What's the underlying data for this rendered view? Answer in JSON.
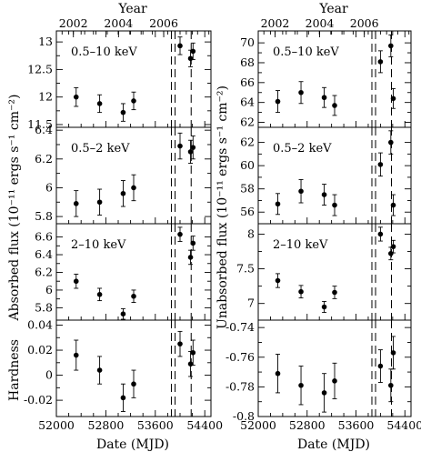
{
  "chart_data": {
    "type": "scatter",
    "shared_x": {
      "xlabel": "Date (MJD)",
      "xlim": [
        52000,
        54500
      ],
      "ticks": [
        52000,
        52800,
        53600,
        54400
      ],
      "tick_labels": [
        "52000",
        "52800",
        "53600",
        "54400"
      ],
      "top_axis": {
        "label": "Year",
        "ticks": [
          52275,
          53005,
          53736
        ],
        "tick_labels": [
          "2002",
          "2004",
          "2006"
        ]
      }
    },
    "vertical_lines": {
      "style": "dashed",
      "x": [
        53860,
        53920,
        54180
      ]
    },
    "row_ylabels": [
      "Absorbed flux (10⁻¹¹ ergs s⁻¹ cm⁻²)",
      "Hardness"
    ],
    "right_ylabel": "Unabsorbed flux (10⁻¹¹ ergs s⁻¹ cm⁻²)",
    "panels": [
      {
        "id": "abs-0.5-10",
        "column": 0,
        "row": 0,
        "label": "0.5–10 keV",
        "ylim": [
          11.45,
          13.2
        ],
        "ticks": [
          11.5,
          12,
          12.5,
          13
        ],
        "tick_labels": [
          "11.5",
          "12",
          "12.5",
          "13"
        ],
        "points": [
          {
            "x": 52320,
            "y": 12.0,
            "err": 0.17
          },
          {
            "x": 52700,
            "y": 11.88,
            "err": 0.16
          },
          {
            "x": 53080,
            "y": 11.72,
            "err": 0.16
          },
          {
            "x": 53250,
            "y": 11.93,
            "err": 0.16
          },
          {
            "x": 54000,
            "y": 12.93,
            "err": 0.16
          },
          {
            "x": 54170,
            "y": 12.7,
            "err": 0.15
          },
          {
            "x": 54210,
            "y": 12.83,
            "err": 0.15
          }
        ]
      },
      {
        "id": "abs-0.5-2",
        "column": 0,
        "row": 1,
        "label": "0.5–2 keV",
        "ylim": [
          5.75,
          6.42
        ],
        "ticks": [
          5.8,
          6.0,
          6.2,
          6.4
        ],
        "tick_labels": [
          "5.8",
          "6",
          "6.2",
          "6.4"
        ],
        "points": [
          {
            "x": 52320,
            "y": 5.89,
            "err": 0.09
          },
          {
            "x": 52700,
            "y": 5.9,
            "err": 0.09
          },
          {
            "x": 53080,
            "y": 5.96,
            "err": 0.09
          },
          {
            "x": 53250,
            "y": 6.0,
            "err": 0.09
          },
          {
            "x": 54000,
            "y": 6.29,
            "err": 0.09
          },
          {
            "x": 54170,
            "y": 6.25,
            "err": 0.08
          },
          {
            "x": 54210,
            "y": 6.28,
            "err": 0.08
          }
        ]
      },
      {
        "id": "abs-2-10",
        "column": 0,
        "row": 2,
        "label": "2–10 keV",
        "ylim": [
          5.66,
          6.75
        ],
        "ticks": [
          5.8,
          6.0,
          6.2,
          6.4,
          6.6
        ],
        "tick_labels": [
          "5.8",
          "6",
          "6.2",
          "6.4",
          "6.6"
        ],
        "points": [
          {
            "x": 52320,
            "y": 6.1,
            "err": 0.08
          },
          {
            "x": 52700,
            "y": 5.95,
            "err": 0.07
          },
          {
            "x": 53080,
            "y": 5.73,
            "err": 0.06
          },
          {
            "x": 53250,
            "y": 5.93,
            "err": 0.07
          },
          {
            "x": 54000,
            "y": 6.63,
            "err": 0.08
          },
          {
            "x": 54170,
            "y": 6.37,
            "err": 0.08
          },
          {
            "x": 54210,
            "y": 6.53,
            "err": 0.08
          }
        ]
      },
      {
        "id": "hardness-left",
        "column": 0,
        "row": 3,
        "label": "",
        "ylim": [
          -0.033,
          0.044
        ],
        "ticks": [
          -0.02,
          0.0,
          0.02,
          0.04
        ],
        "tick_labels": [
          "-0.02",
          "0",
          "0.02",
          "0.04"
        ],
        "points": [
          {
            "x": 52320,
            "y": 0.016,
            "err": 0.012
          },
          {
            "x": 52700,
            "y": 0.004,
            "err": 0.011
          },
          {
            "x": 53080,
            "y": -0.018,
            "err": 0.011
          },
          {
            "x": 53250,
            "y": -0.007,
            "err": 0.011
          },
          {
            "x": 54000,
            "y": 0.025,
            "err": 0.01
          },
          {
            "x": 54170,
            "y": 0.009,
            "err": 0.01
          },
          {
            "x": 54210,
            "y": 0.018,
            "err": 0.01
          }
        ]
      },
      {
        "id": "unabs-0.5-10",
        "column": 1,
        "row": 0,
        "label": "0.5–10 keV",
        "ylim": [
          61.5,
          71.2
        ],
        "ticks": [
          62,
          64,
          66,
          68,
          70
        ],
        "tick_labels": [
          "62",
          "64",
          "66",
          "68",
          "70"
        ],
        "points": [
          {
            "x": 52320,
            "y": 64.1,
            "err": 1.1
          },
          {
            "x": 52700,
            "y": 65.0,
            "err": 1.1
          },
          {
            "x": 53080,
            "y": 64.5,
            "err": 1.0
          },
          {
            "x": 53250,
            "y": 63.7,
            "err": 1.0
          },
          {
            "x": 54000,
            "y": 68.1,
            "err": 1.1
          },
          {
            "x": 54170,
            "y": 69.7,
            "err": 1.1
          },
          {
            "x": 54210,
            "y": 64.4,
            "err": 1.0
          }
        ]
      },
      {
        "id": "unabs-0.5-2",
        "column": 1,
        "row": 1,
        "label": "0.5–2 keV",
        "ylim": [
          55.0,
          63.3
        ],
        "ticks": [
          56,
          58,
          60,
          62
        ],
        "tick_labels": [
          "56",
          "58",
          "60",
          "62"
        ],
        "points": [
          {
            "x": 52320,
            "y": 56.7,
            "err": 0.9
          },
          {
            "x": 52700,
            "y": 57.8,
            "err": 1.0
          },
          {
            "x": 53080,
            "y": 57.5,
            "err": 0.9
          },
          {
            "x": 53250,
            "y": 56.6,
            "err": 0.9
          },
          {
            "x": 54000,
            "y": 60.1,
            "err": 1.0
          },
          {
            "x": 54170,
            "y": 62.0,
            "err": 1.0
          },
          {
            "x": 54210,
            "y": 56.6,
            "err": 0.9
          }
        ]
      },
      {
        "id": "unabs-2-10",
        "column": 1,
        "row": 2,
        "label": "2–10 keV",
        "ylim": [
          6.76,
          8.15
        ],
        "ticks": [
          7.0,
          7.5,
          8.0
        ],
        "tick_labels": [
          "7",
          "7.5",
          "8"
        ],
        "points": [
          {
            "x": 52320,
            "y": 7.33,
            "err": 0.1
          },
          {
            "x": 52700,
            "y": 7.17,
            "err": 0.09
          },
          {
            "x": 53080,
            "y": 6.95,
            "err": 0.08
          },
          {
            "x": 53250,
            "y": 7.16,
            "err": 0.09
          },
          {
            "x": 54000,
            "y": 8.0,
            "err": 0.1
          },
          {
            "x": 54170,
            "y": 7.72,
            "err": 0.09
          },
          {
            "x": 54210,
            "y": 7.82,
            "err": 0.09
          }
        ]
      },
      {
        "id": "hardness-right",
        "column": 1,
        "row": 3,
        "label": "",
        "ylim": [
          -0.8,
          -0.735
        ],
        "ticks": [
          -0.8,
          -0.78,
          -0.76,
          -0.74
        ],
        "tick_labels": [
          "-0.8",
          "-0.78",
          "-0.76",
          "-0.74"
        ],
        "points": [
          {
            "x": 52320,
            "y": -0.771,
            "err": 0.013
          },
          {
            "x": 52700,
            "y": -0.779,
            "err": 0.013
          },
          {
            "x": 53080,
            "y": -0.784,
            "err": 0.013
          },
          {
            "x": 53250,
            "y": -0.776,
            "err": 0.012
          },
          {
            "x": 54000,
            "y": -0.766,
            "err": 0.011
          },
          {
            "x": 54170,
            "y": -0.779,
            "err": 0.011
          },
          {
            "x": 54210,
            "y": -0.757,
            "err": 0.011
          }
        ]
      }
    ]
  }
}
